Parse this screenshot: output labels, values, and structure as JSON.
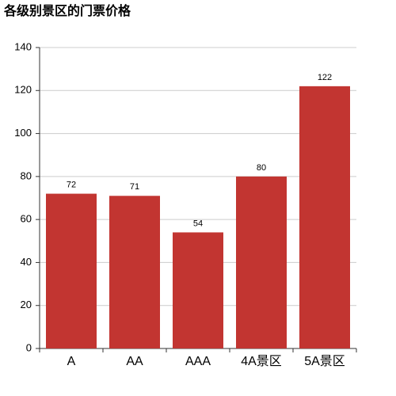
{
  "chart_data": {
    "type": "bar",
    "title": "各级别景区的门票价格",
    "categories": [
      "A",
      "AA",
      "AAA",
      "4A景区",
      "5A景区"
    ],
    "values": [
      72,
      71,
      54,
      80,
      122
    ],
    "color": "#c23531",
    "ylim": [
      0,
      140
    ],
    "yticks": [
      0,
      20,
      40,
      60,
      80,
      100,
      120,
      140
    ],
    "grid": true
  }
}
